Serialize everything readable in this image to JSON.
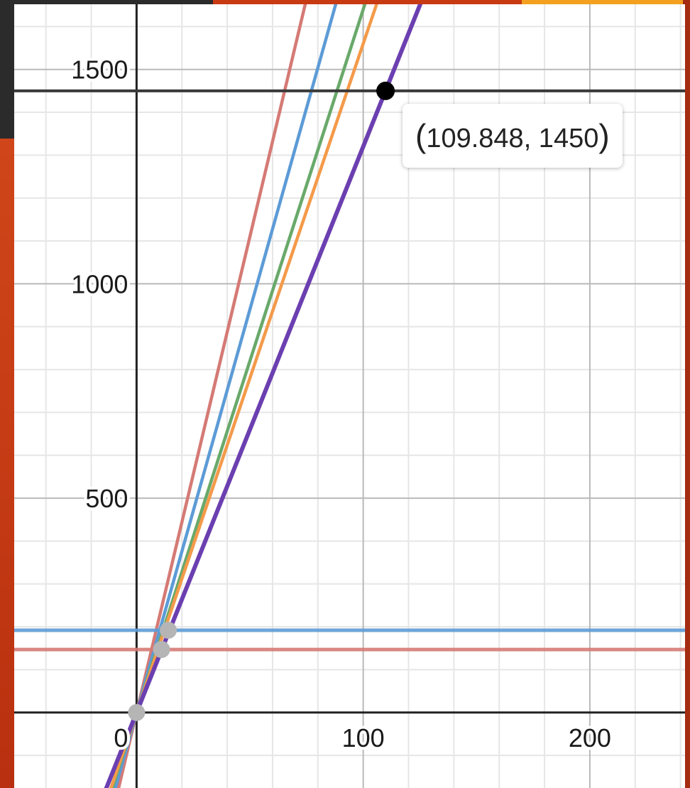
{
  "chart_data": {
    "type": "line",
    "xlim": [
      -54,
      242
    ],
    "ylim": [
      -176,
      1652
    ],
    "x_ticks": [
      0,
      100,
      200
    ],
    "y_ticks": [
      500,
      1000,
      1500
    ],
    "major_step_x": 100,
    "major_step_y": 500,
    "minor_step_x": 20,
    "minor_step_y": 100,
    "grid": true,
    "series": [
      {
        "color": "#d57a75",
        "kind": "line",
        "points": [
          [
            0,
            0
          ],
          [
            100,
            2220
          ]
        ]
      },
      {
        "color": "#5c9bd6",
        "kind": "line",
        "points": [
          [
            0,
            0
          ],
          [
            100,
            1880
          ]
        ]
      },
      {
        "color": "#69a96a",
        "kind": "line",
        "points": [
          [
            0,
            0
          ],
          [
            100,
            1640
          ]
        ]
      },
      {
        "color": "#f49a4a",
        "kind": "line",
        "points": [
          [
            0,
            0
          ],
          [
            100,
            1560
          ]
        ]
      },
      {
        "color": "#6b3fb0",
        "kind": "line",
        "points": [
          [
            0,
            0
          ],
          [
            109.848,
            1450
          ]
        ]
      },
      {
        "color": "#5c9bd6",
        "kind": "hline",
        "y": 192
      },
      {
        "color": "#d57a75",
        "kind": "hline",
        "y": 147
      },
      {
        "color": "#3a3a3a",
        "kind": "hline",
        "y": 1450
      }
    ],
    "points": [
      {
        "x": 0,
        "y": 0,
        "color": "#b5b5b5"
      },
      {
        "x": 11,
        "y": 147,
        "color": "#b5b5b5"
      },
      {
        "x": 14,
        "y": 192,
        "color": "#b5b5b5"
      },
      {
        "x": 109.848,
        "y": 1450,
        "color": "#000000"
      }
    ],
    "highlight_label": {
      "open": "(",
      "text": "109.848, 1450",
      "close": ")"
    }
  }
}
